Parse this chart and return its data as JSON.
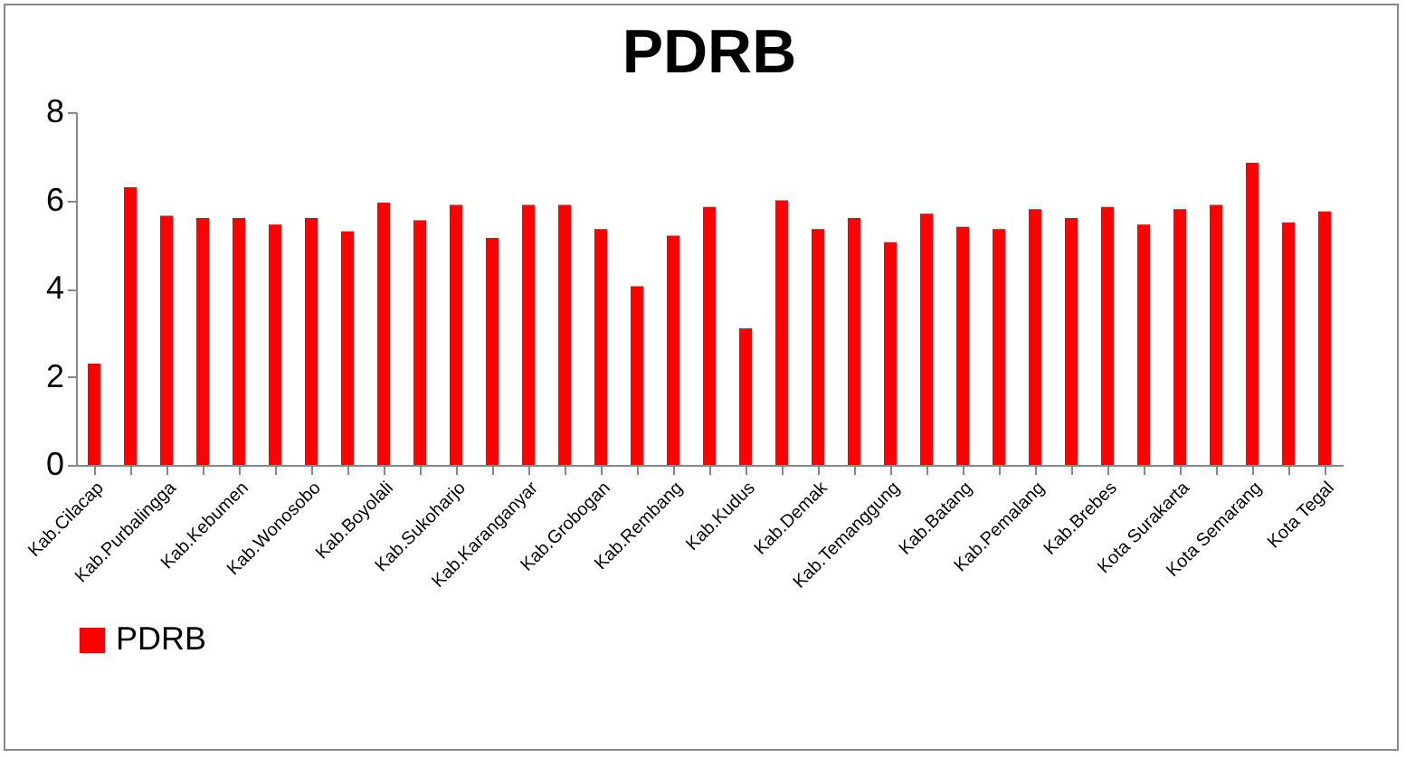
{
  "chart_data": {
    "type": "bar",
    "title": "PDRB",
    "categories": [
      "Kab.Cilacap",
      null,
      "Kab.Purbalingga",
      null,
      "Kab.Kebumen",
      null,
      "Kab.Wonosobo",
      null,
      "Kab.Boyolali",
      null,
      "Kab.Sukoharjo",
      null,
      "Kab.Karanganyar",
      null,
      "Kab.Grobogan",
      null,
      "Kab.Rembang",
      null,
      "Kab.Kudus",
      null,
      "Kab.Demak",
      null,
      "Kab.Temanggung",
      null,
      "Kab.Batang",
      null,
      "Kab.Pemalang",
      null,
      "Kab.Brebes",
      null,
      "Kota Surakarta",
      null,
      "Kota Semarang",
      null,
      "Kota Tegal"
    ],
    "series": [
      {
        "name": "PDRB",
        "color": "#ff0000",
        "values": [
          2.3,
          6.3,
          5.65,
          5.6,
          5.6,
          5.45,
          5.6,
          5.3,
          5.95,
          5.55,
          5.9,
          5.15,
          5.9,
          5.9,
          5.35,
          4.05,
          5.2,
          5.85,
          3.1,
          6.0,
          5.35,
          5.6,
          5.05,
          5.7,
          5.4,
          5.35,
          5.8,
          5.6,
          5.85,
          5.45,
          5.8,
          5.9,
          6.85,
          5.5,
          5.75
        ]
      }
    ],
    "ylim": [
      0,
      8
    ],
    "yticks": [
      0,
      2,
      4,
      6,
      8
    ],
    "grid": false,
    "legend": "bottom"
  }
}
